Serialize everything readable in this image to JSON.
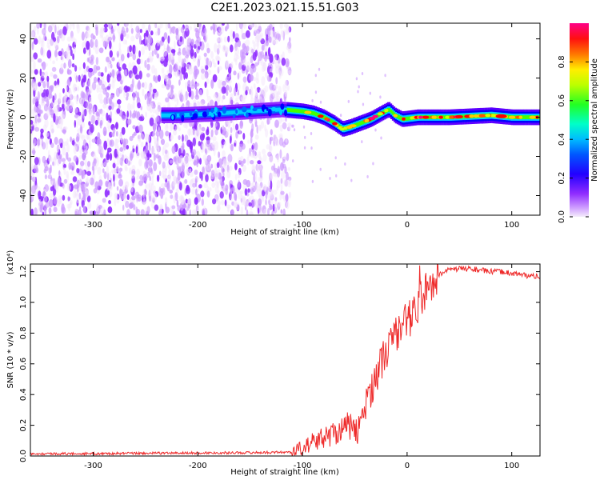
{
  "title": "C2E1.2023.021.15.51.G03",
  "colors": {
    "line": "#ee2a2a",
    "colormap": [
      "#f2e4fb",
      "#cc99ff",
      "#8f2cff",
      "#5c00ff",
      "#0000ff",
      "#0066ff",
      "#00ccff",
      "#00ffaa",
      "#44ff00",
      "#ccff00",
      "#ffcc00",
      "#ff5500",
      "#ff0000",
      "#ff0080"
    ]
  },
  "chart_data": [
    {
      "type": "heatmap",
      "xlabel": "Height of straight line (km)",
      "ylabel": "Frequency (Hz)",
      "xlim": [
        -360,
        127
      ],
      "ylim": [
        -50,
        48
      ],
      "xticks": [
        -300,
        -200,
        -100,
        0,
        100
      ],
      "yticks": [
        -40,
        -20,
        0,
        20,
        40
      ],
      "colorbar": {
        "label": "Normalized spectral amplitude",
        "range": [
          0.0,
          1.0
        ],
        "ticks": [
          "0.0",
          "0.2",
          "0.4",
          "0.6",
          "0.8"
        ]
      },
      "ridge": {
        "x": [
          -220,
          -180,
          -150,
          -120,
          -100,
          -90,
          -80,
          -70,
          -62,
          -55,
          -45,
          -35,
          -25,
          -18,
          -12,
          -5,
          10,
          40,
          80,
          100,
          127
        ],
        "freq": [
          1,
          2,
          3,
          4,
          3,
          2,
          0,
          -3,
          -6,
          -5,
          -3,
          -1,
          2,
          4,
          1,
          -1,
          0,
          0,
          1,
          0,
          0
        ],
        "peak_amplitude": 0.95
      },
      "noise_region_x": [
        -360,
        -112
      ]
    },
    {
      "type": "line",
      "xlabel": "Height of straight line (km)",
      "ylabel": "SNR (10 * v/v)",
      "y_multiplier": "(x10⁴)",
      "xlim": [
        -360,
        127
      ],
      "ylim": [
        0,
        1.25
      ],
      "xticks": [
        -300,
        -200,
        -100,
        0,
        100
      ],
      "yticks": [
        "0.0",
        "0.2",
        "0.4",
        "0.6",
        "0.8",
        "1.0",
        "1.2"
      ],
      "series": [
        {
          "x": [
            -360,
            -300,
            -250,
            -200,
            -150,
            -110,
            -100,
            -90,
            -80,
            -70,
            -62,
            -55,
            -50,
            -45,
            -40,
            -35,
            -30,
            -25,
            -20,
            -15,
            -10,
            -5,
            0,
            5,
            10,
            15,
            20,
            25,
            30,
            35,
            40,
            50,
            60,
            70,
            80,
            90,
            100,
            110,
            120,
            127
          ],
          "y": [
            0.015,
            0.015,
            0.018,
            0.02,
            0.022,
            0.025,
            0.05,
            0.09,
            0.12,
            0.15,
            0.18,
            0.2,
            0.14,
            0.2,
            0.32,
            0.42,
            0.52,
            0.6,
            0.68,
            0.75,
            0.8,
            0.85,
            0.88,
            0.92,
            0.98,
            1.05,
            1.1,
            1.15,
            1.18,
            1.2,
            1.21,
            1.22,
            1.22,
            1.21,
            1.2,
            1.2,
            1.19,
            1.18,
            1.17,
            1.17
          ]
        }
      ]
    }
  ]
}
